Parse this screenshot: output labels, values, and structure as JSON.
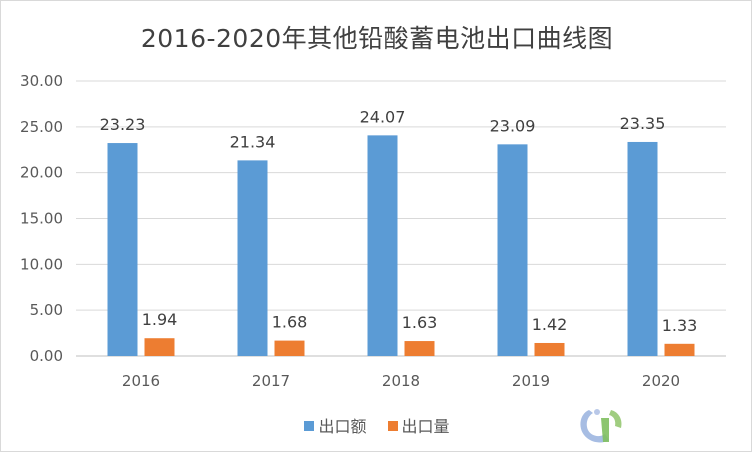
{
  "chart_data": {
    "type": "bar",
    "title": "2016-2020年其他铅酸蓄电池出口曲线图",
    "categories": [
      "2016",
      "2017",
      "2018",
      "2019",
      "2020"
    ],
    "series": [
      {
        "name": "出口额",
        "values": [
          23.23,
          21.34,
          24.07,
          23.09,
          23.35
        ],
        "labels": [
          "23.23",
          "21.34",
          "24.07",
          "23.09",
          "23.35"
        ],
        "color": "#5b9bd5"
      },
      {
        "name": "出口量",
        "values": [
          1.94,
          1.68,
          1.63,
          1.42,
          1.33
        ],
        "labels": [
          "1.94",
          "1.68",
          "1.63",
          "1.42",
          "1.33"
        ],
        "color": "#ed7d31"
      }
    ],
    "yticks": [
      "0.00",
      "5.00",
      "10.00",
      "15.00",
      "20.00",
      "25.00",
      "30.00"
    ],
    "ylim": [
      0,
      30
    ],
    "grid": true,
    "legend": "bottom"
  },
  "colors": {
    "grid": "#d9d9d9",
    "axis": "#bfbfbf"
  }
}
